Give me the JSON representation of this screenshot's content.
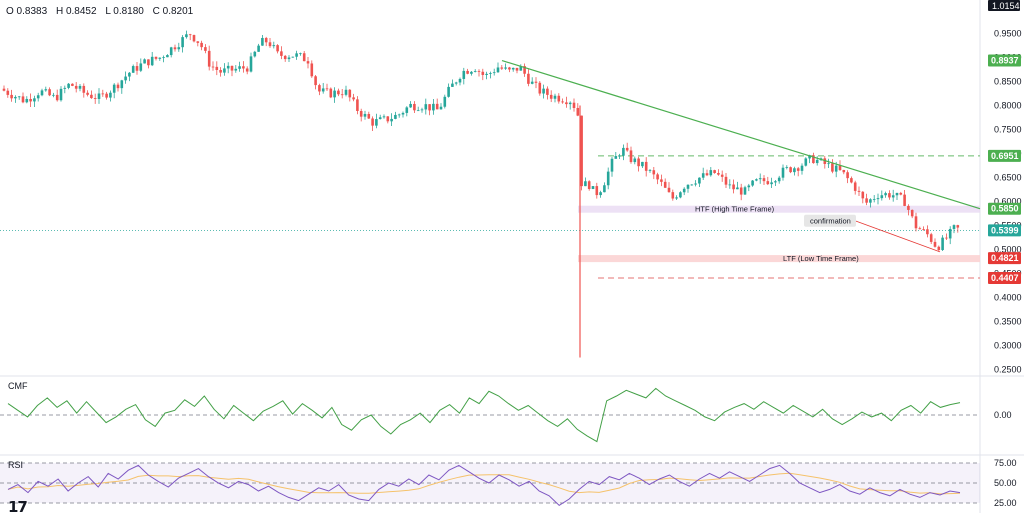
{
  "header": {
    "open": "O 0.8383",
    "high": "H 0.8452",
    "low": "L 0.8180",
    "close": "C 0.8201"
  },
  "price_axis": {
    "ticks": [
      "0.9500",
      "0.9000",
      "0.8500",
      "0.8000",
      "0.7500",
      "0.7000",
      "0.6500",
      "0.6000",
      "0.5500",
      "0.5000",
      "0.4500",
      "0.4000",
      "0.3500",
      "0.3000",
      "0.2500"
    ],
    "top_badge": "1.0154"
  },
  "cmf_axis": {
    "ticks": [
      "0.00"
    ]
  },
  "rsi_axis": {
    "ticks": [
      "75.00",
      "50.00",
      "25.00"
    ]
  },
  "panes": {
    "cmf": "CMF",
    "rsi": "RSI"
  },
  "logo": "17",
  "colors": {
    "up": "#26a69a",
    "down": "#ef5350",
    "trendline": "#4caf50",
    "cmf": "#43a047",
    "rsi": "#7e57c2",
    "rsi_ma": "#f5c26b"
  },
  "chart_data": [
    {
      "type": "candlestick",
      "y_range": [
        0.25,
        1.0
      ],
      "price_labels": [
        {
          "value": 0.8937,
          "text": "0.8937",
          "color": "#4caf50"
        },
        {
          "value": 0.6951,
          "text": "0.6951",
          "color": "#4caf50"
        },
        {
          "value": 0.585,
          "text": "0.5850",
          "color": "#4caf50"
        },
        {
          "value": 0.5399,
          "text": "0.5399",
          "color": "#26a69a"
        },
        {
          "value": 0.4821,
          "text": "0.4821",
          "color": "#e53935"
        },
        {
          "value": 0.4407,
          "text": "0.4407",
          "color": "#e53935"
        }
      ],
      "zones": [
        {
          "label": "HTF (High Time Frame)",
          "value": 0.585
        },
        {
          "label": "LTF (Low Time Frame)",
          "value": 0.4821
        }
      ],
      "dashed_levels": [
        {
          "value": 0.6951,
          "color": "#66bb6a"
        },
        {
          "value": 0.4407,
          "color": "#e57373"
        }
      ],
      "annotations": [
        {
          "text": "confirmation"
        }
      ],
      "trendline": {
        "from": 0.8937,
        "to": 0.585
      },
      "close_path": [
        [
          0,
          0.835
        ],
        [
          15,
          0.82
        ],
        [
          25,
          0.81
        ],
        [
          40,
          0.83
        ],
        [
          55,
          0.815
        ],
        [
          70,
          0.845
        ],
        [
          85,
          0.825
        ],
        [
          100,
          0.815
        ],
        [
          115,
          0.84
        ],
        [
          130,
          0.87
        ],
        [
          145,
          0.89
        ],
        [
          160,
          0.9
        ],
        [
          175,
          0.925
        ],
        [
          190,
          0.95
        ],
        [
          200,
          0.93
        ],
        [
          210,
          0.885
        ],
        [
          220,
          0.87
        ],
        [
          235,
          0.875
        ],
        [
          248,
          0.88
        ],
        [
          260,
          0.93
        ],
        [
          268,
          0.935
        ],
        [
          278,
          0.905
        ],
        [
          295,
          0.905
        ],
        [
          308,
          0.895
        ],
        [
          318,
          0.83
        ],
        [
          330,
          0.825
        ],
        [
          345,
          0.83
        ],
        [
          358,
          0.79
        ],
        [
          372,
          0.765
        ],
        [
          385,
          0.77
        ],
        [
          398,
          0.78
        ],
        [
          410,
          0.8
        ],
        [
          425,
          0.8
        ],
        [
          438,
          0.79
        ],
        [
          450,
          0.835
        ],
        [
          462,
          0.87
        ],
        [
          475,
          0.88
        ],
        [
          485,
          0.86
        ],
        [
          498,
          0.88
        ],
        [
          510,
          0.87
        ],
        [
          520,
          0.88
        ],
        [
          530,
          0.85
        ],
        [
          540,
          0.83
        ],
        [
          552,
          0.82
        ],
        [
          562,
          0.815
        ],
        [
          572,
          0.81
        ],
        [
          578,
          0.78
        ],
        [
          580,
          0.65
        ],
        [
          583,
          0.63
        ],
        [
          588,
          0.64
        ],
        [
          595,
          0.615
        ],
        [
          602,
          0.63
        ],
        [
          612,
          0.68
        ],
        [
          622,
          0.71
        ],
        [
          630,
          0.69
        ],
        [
          645,
          0.67
        ],
        [
          660,
          0.64
        ],
        [
          672,
          0.605
        ],
        [
          685,
          0.635
        ],
        [
          700,
          0.65
        ],
        [
          715,
          0.66
        ],
        [
          730,
          0.63
        ],
        [
          745,
          0.62
        ],
        [
          755,
          0.64
        ],
        [
          770,
          0.645
        ],
        [
          785,
          0.665
        ],
        [
          800,
          0.675
        ],
        [
          812,
          0.69
        ],
        [
          828,
          0.675
        ],
        [
          842,
          0.66
        ],
        [
          855,
          0.63
        ],
        [
          865,
          0.595
        ],
        [
          878,
          0.615
        ],
        [
          892,
          0.615
        ],
        [
          905,
          0.6
        ],
        [
          915,
          0.55
        ],
        [
          928,
          0.53
        ],
        [
          937,
          0.505
        ],
        [
          945,
          0.52
        ],
        [
          955,
          0.545
        ],
        [
          960,
          0.54
        ]
      ]
    },
    {
      "type": "line",
      "name": "CMF",
      "zero_tick": "0.00",
      "values": [
        0.12,
        0.05,
        -0.02,
        0.1,
        0.18,
        0.08,
        0.15,
        0.02,
        0.14,
        0.03,
        -0.08,
        -0.02,
        0.06,
        0.11,
        -0.05,
        -0.12,
        0.02,
        0.05,
        0.16,
        0.09,
        0.2,
        0.06,
        -0.04,
        0.1,
        0.02,
        -0.06,
        0.04,
        0.09,
        0.15,
        0.01,
        0.12,
        0.05,
        -0.03,
        0.08,
        -0.1,
        -0.16,
        -0.05,
        0.0,
        -0.12,
        -0.2,
        -0.1,
        -0.05,
        0.02,
        -0.08,
        0.05,
        0.11,
        0.02,
        0.18,
        0.12,
        0.25,
        0.2,
        0.12,
        0.05,
        0.1,
        0.02,
        -0.06,
        -0.12,
        -0.04,
        -0.15,
        -0.22,
        -0.28,
        0.15,
        0.2,
        0.26,
        0.22,
        0.18,
        0.28,
        0.2,
        0.15,
        0.1,
        0.05,
        -0.02,
        -0.06,
        0.03,
        0.08,
        0.12,
        0.06,
        0.14,
        0.08,
        0.02,
        0.1,
        0.04,
        -0.02,
        0.06,
        -0.04,
        -0.1,
        -0.04,
        0.03,
        -0.02,
        0.02,
        -0.06,
        0.05,
        0.1,
        0.02,
        0.14,
        0.08,
        0.11,
        0.13
      ]
    },
    {
      "type": "line",
      "name": "RSI",
      "y_range": [
        25,
        75
      ],
      "ticks": [
        "75.00",
        "50.00",
        "25.00"
      ],
      "values": [
        42,
        48,
        38,
        52,
        46,
        55,
        40,
        50,
        58,
        45,
        62,
        55,
        66,
        72,
        60,
        52,
        45,
        56,
        62,
        68,
        58,
        50,
        44,
        52,
        48,
        40,
        46,
        38,
        32,
        28,
        36,
        44,
        40,
        48,
        35,
        30,
        28,
        42,
        50,
        46,
        55,
        48,
        60,
        54,
        66,
        72,
        64,
        56,
        50,
        60,
        54,
        46,
        52,
        40,
        34,
        22,
        30,
        42,
        52,
        48,
        58,
        54,
        62,
        56,
        48,
        55,
        60,
        52,
        46,
        55,
        62,
        56,
        64,
        58,
        52,
        60,
        68,
        72,
        62,
        50,
        44,
        38,
        42,
        48,
        40,
        36,
        44,
        38,
        34,
        42,
        36,
        32,
        38,
        35,
        40,
        38
      ]
    }
  ]
}
